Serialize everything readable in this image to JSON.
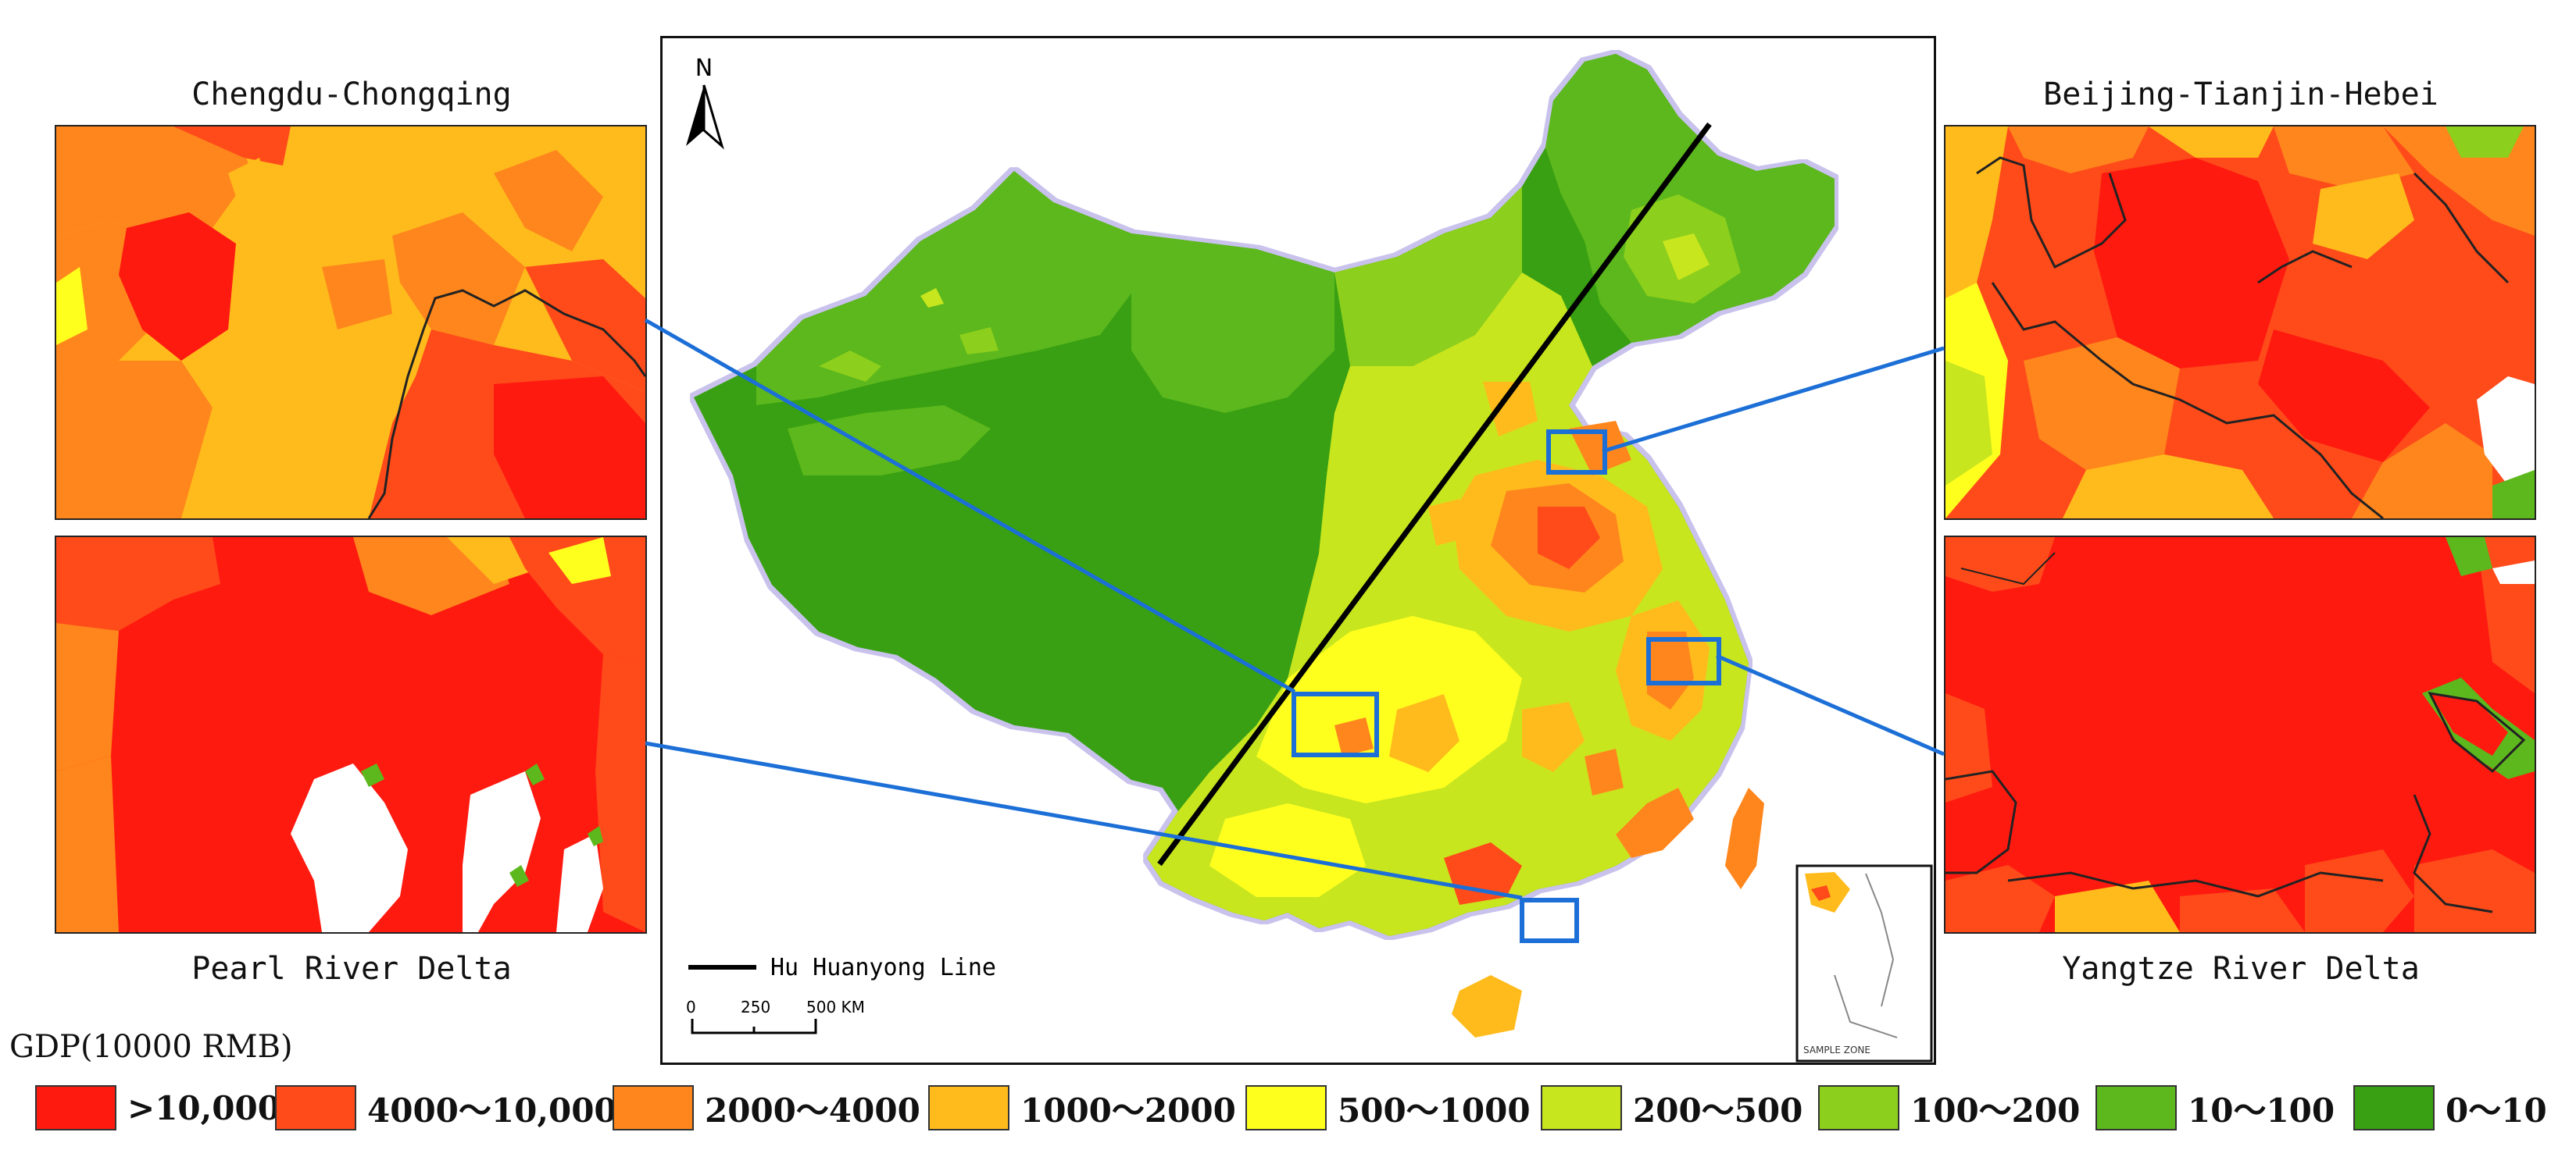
{
  "insets": {
    "top_left": {
      "title": "Chengdu-Chongqing"
    },
    "bottom_left": {
      "title": "Pearl River Delta"
    },
    "top_right": {
      "title": "Beijing-Tianjin-Hebei"
    },
    "bottom_right": {
      "title": "Yangtze River Delta"
    }
  },
  "map": {
    "north_label": "N",
    "line_legend_label": "Hu Huanyong Line",
    "scale_labels": [
      "0",
      "250",
      "500 KM"
    ],
    "highlight_color": "#1c6fd6",
    "line_color": "#000000",
    "small_inset_label": "SAMPLE ZONE"
  },
  "legend": {
    "title": "GDP(10000 RMB)",
    "classes": [
      {
        "label": ">10,000",
        "color": "#ff1a10"
      },
      {
        "label": "4000～10,000",
        "color": "#ff4b1a"
      },
      {
        "label": "2000～4000",
        "color": "#ff861c"
      },
      {
        "label": "1000～2000",
        "color": "#ffbb1c"
      },
      {
        "label": "500～1000",
        "color": "#ffff1e"
      },
      {
        "label": "200～500",
        "color": "#c8e61e"
      },
      {
        "label": "100～200",
        "color": "#8ccf1c"
      },
      {
        "label": "10～100",
        "color": "#5cb81c"
      },
      {
        "label": "0～10",
        "color": "#38a012"
      }
    ]
  }
}
